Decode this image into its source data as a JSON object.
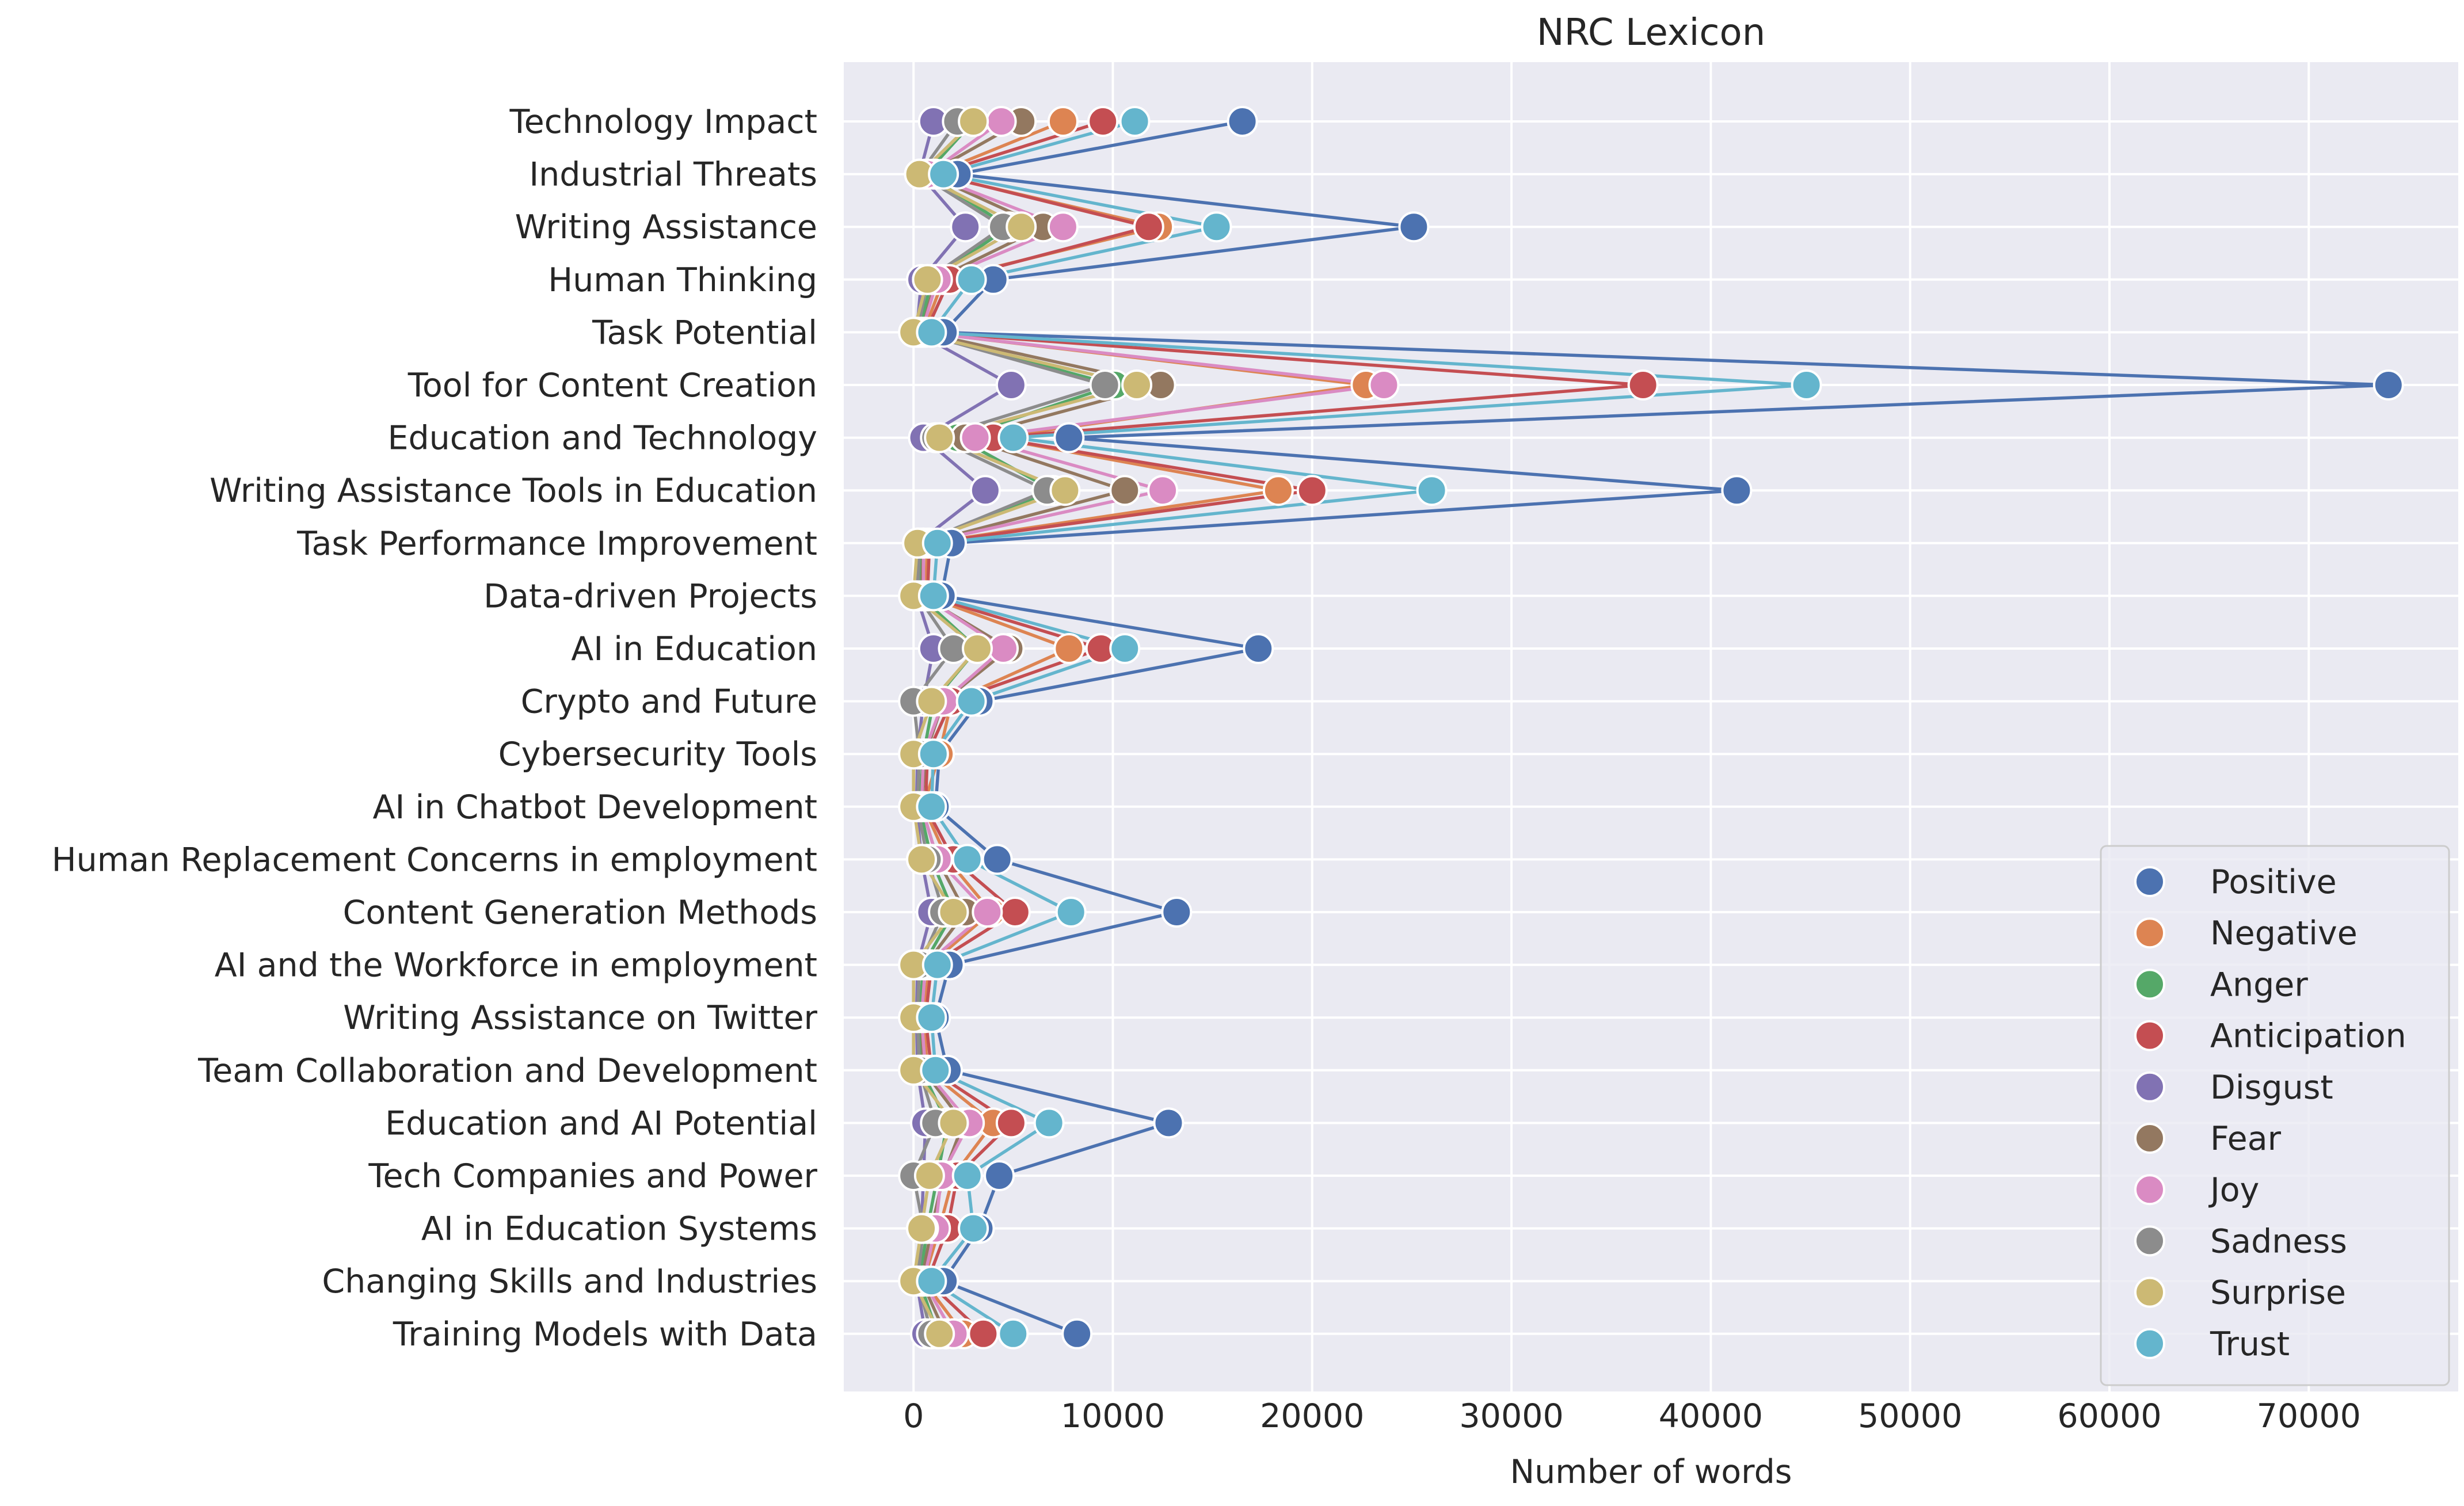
{
  "chart_data": {
    "type": "line",
    "orientation": "horizontal",
    "title": "NRC Lexicon",
    "xlabel": "Number of words",
    "ylabel": "",
    "xlim": [
      -3500,
      77500
    ],
    "xticks": [
      0,
      10000,
      20000,
      30000,
      40000,
      50000,
      60000,
      70000
    ],
    "grid": true,
    "legend_position": "lower-right",
    "categories": [
      "Technology Impact",
      "Industrial Threats",
      "Writing Assistance",
      "Human Thinking",
      "Task Potential",
      "Tool for Content Creation",
      "Education and Technology",
      "Writing Assistance Tools in Education",
      "Task Performance Improvement",
      "Data-driven Projects",
      "AI in Education",
      "Crypto and Future",
      "Cybersecurity Tools",
      "AI in Chatbot Development",
      "Human Replacement Concerns in employment",
      "Content Generation Methods",
      "AI and the Workforce in employment",
      "Writing Assistance on Twitter",
      "Team Collaboration and Development",
      "Education and AI Potential",
      "Tech Companies and Power",
      "AI in Education Systems",
      "Changing Skills and Industries",
      "Training Models with Data"
    ],
    "series": [
      {
        "name": "Positive",
        "color": "#4c72b0",
        "values": [
          16500,
          2200,
          25100,
          4000,
          1500,
          74000,
          7800,
          41300,
          1900,
          1400,
          17300,
          3300,
          1300,
          1100,
          4200,
          13200,
          1800,
          1100,
          1700,
          12800,
          4300,
          3300,
          1500,
          8200
        ]
      },
      {
        "name": "Negative",
        "color": "#dd8452",
        "values": [
          7500,
          1000,
          12300,
          1500,
          500,
          22700,
          4000,
          18300,
          700,
          600,
          7800,
          1900,
          1300,
          500,
          1700,
          3900,
          800,
          500,
          700,
          4000,
          2000,
          1300,
          500,
          2500
        ]
      },
      {
        "name": "Anger",
        "color": "#55a868",
        "values": [
          3000,
          600,
          4800,
          900,
          300,
          10100,
          2200,
          7000,
          400,
          300,
          3200,
          1000,
          500,
          300,
          900,
          2000,
          500,
          300,
          400,
          1700,
          1200,
          700,
          300,
          1200
        ]
      },
      {
        "name": "Anticipation",
        "color": "#c44e52",
        "values": [
          9500,
          1100,
          11800,
          1800,
          600,
          36600,
          4000,
          20000,
          800,
          700,
          9400,
          1900,
          700,
          600,
          2000,
          5100,
          900,
          600,
          900,
          4900,
          2200,
          1700,
          700,
          3500
        ]
      },
      {
        "name": "Disgust",
        "color": "#8172b3",
        "values": [
          1000,
          300,
          2600,
          400,
          150,
          4900,
          500,
          3600,
          200,
          150,
          1000,
          500,
          200,
          150,
          400,
          900,
          200,
          150,
          200,
          600,
          500,
          400,
          150,
          600
        ]
      },
      {
        "name": "Fear",
        "color": "#937860",
        "values": [
          5400,
          700,
          6500,
          1100,
          400,
          12400,
          2600,
          10600,
          500,
          400,
          4800,
          1500,
          600,
          400,
          1200,
          2600,
          600,
          400,
          500,
          2500,
          1500,
          900,
          400,
          1600
        ]
      },
      {
        "name": "Joy",
        "color": "#da8bc3",
        "values": [
          4400,
          700,
          7500,
          1200,
          400,
          23600,
          3100,
          12500,
          500,
          500,
          4500,
          1500,
          500,
          400,
          1200,
          3700,
          600,
          400,
          600,
          2800,
          1400,
          1100,
          500,
          2000
        ]
      },
      {
        "name": "Sadness",
        "color": "#8c8c8c",
        "values": [
          2200,
          300,
          4500,
          700,
          200,
          9600,
          1100,
          6700,
          300,
          200,
          2000,
          0,
          300,
          200,
          700,
          1500,
          300,
          200,
          300,
          1100,
          0,
          500,
          200,
          900
        ]
      },
      {
        "name": "Surprise",
        "color": "#ccb974",
        "values": [
          3000,
          300,
          5400,
          700,
          0,
          11200,
          1300,
          7600,
          200,
          0,
          3200,
          900,
          0,
          0,
          400,
          2000,
          0,
          0,
          0,
          2000,
          800,
          400,
          0,
          1300
        ]
      },
      {
        "name": "Trust",
        "color": "#64b5cd",
        "values": [
          11100,
          1500,
          15200,
          2900,
          900,
          44800,
          5000,
          26000,
          1200,
          1000,
          10600,
          2900,
          1000,
          900,
          2700,
          7900,
          1200,
          900,
          1100,
          6800,
          2700,
          3000,
          900,
          5000
        ]
      }
    ]
  }
}
